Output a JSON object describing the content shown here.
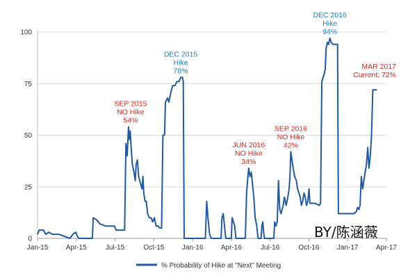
{
  "chart_data": {
    "type": "line",
    "title": "",
    "xlabel": "",
    "ylabel": "",
    "ylim": [
      0,
      100
    ],
    "y_ticks": [
      0,
      25,
      50,
      75,
      100
    ],
    "x_ticks": [
      "Jan-15",
      "Apr-15",
      "Jul-15",
      "Oct-15",
      "Jan-16",
      "Apr-16",
      "Jul-16",
      "Oct-16",
      "Jan-17",
      "Apr-17"
    ],
    "grid": "horizontal",
    "legend_position": "bottom-center",
    "series": [
      {
        "name": "% Probability of Hike at \"Next\" Meeting",
        "color": "#1f5aa6",
        "points": [
          [
            "2015-01-01",
            2
          ],
          [
            "2015-01-05",
            4
          ],
          [
            "2015-01-15",
            4
          ],
          [
            "2015-01-20",
            2
          ],
          [
            "2015-01-28",
            3
          ],
          [
            "2015-02-05",
            2
          ],
          [
            "2015-02-20",
            2
          ],
          [
            "2015-03-05",
            1
          ],
          [
            "2015-03-18",
            0
          ],
          [
            "2015-03-25",
            2
          ],
          [
            "2015-04-01",
            3
          ],
          [
            "2015-04-05",
            1
          ],
          [
            "2015-04-08",
            0
          ],
          [
            "2015-05-10",
            0
          ],
          [
            "2015-05-12",
            10
          ],
          [
            "2015-05-20",
            9
          ],
          [
            "2015-05-28",
            7
          ],
          [
            "2015-06-10",
            6
          ],
          [
            "2015-06-20",
            6
          ],
          [
            "2015-07-01",
            6
          ],
          [
            "2015-07-05",
            4
          ],
          [
            "2015-07-25",
            4
          ],
          [
            "2015-07-28",
            46
          ],
          [
            "2015-07-31",
            40
          ],
          [
            "2015-08-03",
            54
          ],
          [
            "2015-08-05",
            48
          ],
          [
            "2015-08-07",
            52
          ],
          [
            "2015-08-10",
            42
          ],
          [
            "2015-08-12",
            36
          ],
          [
            "2015-08-16",
            32
          ],
          [
            "2015-08-19",
            28
          ],
          [
            "2015-08-21",
            36
          ],
          [
            "2015-08-24",
            38
          ],
          [
            "2015-08-27",
            30
          ],
          [
            "2015-09-01",
            26
          ],
          [
            "2015-09-04",
            24
          ],
          [
            "2015-09-06",
            30
          ],
          [
            "2015-09-08",
            22
          ],
          [
            "2015-09-11",
            18
          ],
          [
            "2015-09-14",
            18
          ],
          [
            "2015-09-17",
            12
          ],
          [
            "2015-09-21",
            10
          ],
          [
            "2015-09-25",
            10
          ],
          [
            "2015-09-29",
            8
          ],
          [
            "2015-10-03",
            10
          ],
          [
            "2015-10-07",
            6
          ],
          [
            "2015-10-12",
            6
          ],
          [
            "2015-10-15",
            5
          ],
          [
            "2015-10-20",
            5
          ],
          [
            "2015-10-23",
            50
          ],
          [
            "2015-10-27",
            50
          ],
          [
            "2015-10-29",
            66
          ],
          [
            "2015-11-03",
            68
          ],
          [
            "2015-11-06",
            66
          ],
          [
            "2015-11-10",
            70
          ],
          [
            "2015-11-15",
            74
          ],
          [
            "2015-11-20",
            74
          ],
          [
            "2015-11-25",
            76
          ],
          [
            "2015-11-30",
            76
          ],
          [
            "2015-12-04",
            78
          ],
          [
            "2015-12-08",
            78
          ],
          [
            "2015-12-10",
            76
          ],
          [
            "2015-12-12",
            0
          ],
          [
            "2016-01-31",
            0
          ],
          [
            "2016-02-03",
            18
          ],
          [
            "2016-02-06",
            10
          ],
          [
            "2016-02-08",
            6
          ],
          [
            "2016-02-10",
            2
          ],
          [
            "2016-02-14",
            0
          ],
          [
            "2016-03-08",
            0
          ],
          [
            "2016-03-10",
            10
          ],
          [
            "2016-03-13",
            12
          ],
          [
            "2016-03-16",
            6
          ],
          [
            "2016-03-19",
            0
          ],
          [
            "2016-04-01",
            0
          ],
          [
            "2016-04-03",
            10
          ],
          [
            "2016-04-06",
            8
          ],
          [
            "2016-04-09",
            6
          ],
          [
            "2016-04-12",
            0
          ],
          [
            "2016-05-04",
            0
          ],
          [
            "2016-05-07",
            22
          ],
          [
            "2016-05-10",
            30
          ],
          [
            "2016-05-12",
            34
          ],
          [
            "2016-05-15",
            30
          ],
          [
            "2016-05-18",
            32
          ],
          [
            "2016-05-21",
            26
          ],
          [
            "2016-05-24",
            20
          ],
          [
            "2016-05-27",
            10
          ],
          [
            "2016-05-31",
            6
          ],
          [
            "2016-06-03",
            0
          ],
          [
            "2016-06-10",
            0
          ],
          [
            "2016-06-12",
            6
          ],
          [
            "2016-06-14",
            8
          ],
          [
            "2016-06-16",
            3
          ],
          [
            "2016-06-18",
            0
          ],
          [
            "2016-07-10",
            0
          ],
          [
            "2016-07-12",
            8
          ],
          [
            "2016-07-15",
            6
          ],
          [
            "2016-07-18",
            8
          ],
          [
            "2016-07-21",
            28
          ],
          [
            "2016-07-24",
            14
          ],
          [
            "2016-07-27",
            12
          ],
          [
            "2016-08-01",
            16
          ],
          [
            "2016-08-04",
            20
          ],
          [
            "2016-08-08",
            16
          ],
          [
            "2016-08-12",
            20
          ],
          [
            "2016-08-15",
            24
          ],
          [
            "2016-08-17",
            30
          ],
          [
            "2016-08-19",
            42
          ],
          [
            "2016-08-23",
            36
          ],
          [
            "2016-08-28",
            30
          ],
          [
            "2016-09-01",
            28
          ],
          [
            "2016-09-04",
            24
          ],
          [
            "2016-09-07",
            22
          ],
          [
            "2016-09-10",
            20
          ],
          [
            "2016-09-13",
            16
          ],
          [
            "2016-09-16",
            18
          ],
          [
            "2016-09-19",
            22
          ],
          [
            "2016-09-22",
            20
          ],
          [
            "2016-09-25",
            16
          ],
          [
            "2016-09-28",
            18
          ],
          [
            "2016-10-01",
            24
          ],
          [
            "2016-10-03",
            17
          ],
          [
            "2016-10-07",
            17
          ],
          [
            "2016-10-15",
            17
          ],
          [
            "2016-10-25",
            16
          ],
          [
            "2016-10-28",
            17
          ],
          [
            "2016-10-31",
            76
          ],
          [
            "2016-11-03",
            78
          ],
          [
            "2016-11-06",
            80
          ],
          [
            "2016-11-08",
            82
          ],
          [
            "2016-11-10",
            92
          ],
          [
            "2016-11-13",
            95
          ],
          [
            "2016-11-16",
            94
          ],
          [
            "2016-11-19",
            97
          ],
          [
            "2016-11-22",
            95
          ],
          [
            "2016-11-26",
            94
          ],
          [
            "2016-11-30",
            94
          ],
          [
            "2016-12-04",
            94
          ],
          [
            "2016-12-07",
            94
          ],
          [
            "2016-12-09",
            12
          ],
          [
            "2016-12-20",
            12
          ],
          [
            "2017-01-05",
            12
          ],
          [
            "2017-01-15",
            12
          ],
          [
            "2017-01-20",
            13
          ],
          [
            "2017-01-23",
            15
          ],
          [
            "2017-01-26",
            14
          ],
          [
            "2017-01-29",
            16
          ],
          [
            "2017-02-01",
            30
          ],
          [
            "2017-02-04",
            24
          ],
          [
            "2017-02-07",
            28
          ],
          [
            "2017-02-10",
            32
          ],
          [
            "2017-02-13",
            36
          ],
          [
            "2017-02-16",
            44
          ],
          [
            "2017-02-19",
            34
          ],
          [
            "2017-02-22",
            40
          ],
          [
            "2017-02-25",
            50
          ],
          [
            "2017-02-28",
            72
          ],
          [
            "2017-03-04",
            72
          ],
          [
            "2017-03-10",
            72
          ]
        ]
      }
    ],
    "annotations": [
      {
        "lines": [
          "SEP 2015",
          "NO Hike",
          "54%"
        ],
        "x": "2015-08-08",
        "y": 54,
        "color": "#e8241b"
      },
      {
        "lines": [
          "DEC 2015",
          "Hike",
          "78%"
        ],
        "x": "2015-12-04",
        "y": 78,
        "color": "#1f7fc0"
      },
      {
        "lines": [
          "JUN 2016",
          "NO Hike",
          "34%"
        ],
        "x": "2016-05-12",
        "y": 34,
        "color": "#e8241b"
      },
      {
        "lines": [
          "SEP 2016",
          "NO Hike",
          "42%"
        ],
        "x": "2016-08-19",
        "y": 42,
        "color": "#e8241b"
      },
      {
        "lines": [
          "DEC 2016",
          "Hike",
          "94%"
        ],
        "x": "2016-11-19",
        "y": 97,
        "color": "#1f7fc0"
      },
      {
        "lines": [
          "MAR 2017",
          "Current: 72%"
        ],
        "x": "2017-03-10",
        "y": 72,
        "color": "#e8241b"
      }
    ],
    "watermark": "BY/陈涵薇"
  }
}
